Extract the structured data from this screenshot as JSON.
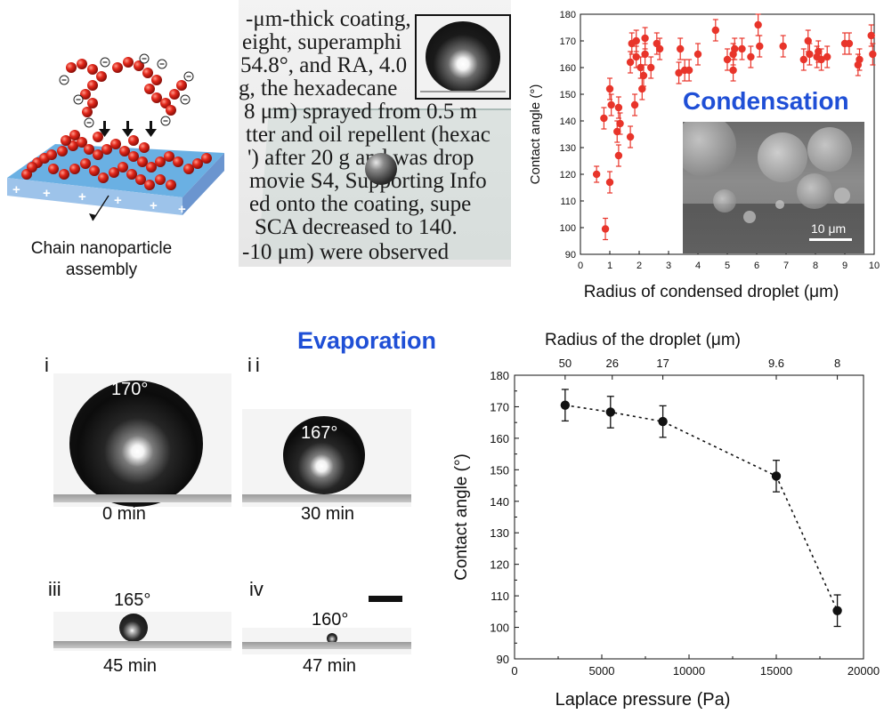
{
  "schematic": {
    "caption_line1": "Chain nanoparticle",
    "caption_line2": "assembly"
  },
  "photo_text": {
    "lines": [
      "-μm-thick coating,",
      "eight, superamphi",
      "54.8°, and RA, 4.0",
      "g, the hexadecane",
      "8 μm) sprayed from 0.5 m",
      "tter and oil repellent (hexac",
      "') after 20 g and was drop",
      "movie S4, Supporting Info",
      "ed onto the coating, supe",
      "SCA decreased to 140.",
      "-10 μm) were observed"
    ]
  },
  "condensation": {
    "title": "Condensation",
    "title_color": "#1f4fd6",
    "scalebar_label": "10 μm"
  },
  "evaporation": {
    "title": "Evaporation",
    "title_color": "#1f4fd6",
    "panels": [
      {
        "num": "i",
        "angle": "170°",
        "time": "0 min"
      },
      {
        "num": "ii",
        "angle": "167°",
        "time": "30 min"
      },
      {
        "num": "iii",
        "angle": "165°",
        "time": "45 min"
      },
      {
        "num": "iv",
        "angle": "160°",
        "time": "47 min"
      }
    ]
  },
  "chart_data": [
    {
      "type": "scatter",
      "xlabel": "Radius of condensed droplet (μm)",
      "ylabel": "Contact angle (°)",
      "xlim": [
        0,
        10
      ],
      "ylim": [
        90,
        180
      ],
      "xticks": [
        "0",
        "1",
        "2",
        "3",
        "4",
        "5",
        "6",
        "7",
        "8",
        "9",
        "10"
      ],
      "yticks": [
        "90",
        "100",
        "110",
        "120",
        "130",
        "140",
        "150",
        "160",
        "170",
        "180"
      ],
      "color": "#e8342a",
      "points": [
        {
          "x": 0.55,
          "y": 120,
          "e": 3
        },
        {
          "x": 0.8,
          "y": 141,
          "e": 4
        },
        {
          "x": 0.85,
          "y": 99.5,
          "e": 4
        },
        {
          "x": 1.0,
          "y": 117,
          "e": 4
        },
        {
          "x": 1.0,
          "y": 152,
          "e": 4
        },
        {
          "x": 1.05,
          "y": 146,
          "e": 4
        },
        {
          "x": 1.25,
          "y": 136,
          "e": 4
        },
        {
          "x": 1.3,
          "y": 145,
          "e": 4
        },
        {
          "x": 1.3,
          "y": 127,
          "e": 4
        },
        {
          "x": 1.35,
          "y": 139,
          "e": 4
        },
        {
          "x": 1.7,
          "y": 134,
          "e": 4
        },
        {
          "x": 1.7,
          "y": 162,
          "e": 4
        },
        {
          "x": 1.75,
          "y": 169,
          "e": 4
        },
        {
          "x": 1.85,
          "y": 146,
          "e": 4
        },
        {
          "x": 1.9,
          "y": 170,
          "e": 4
        },
        {
          "x": 1.9,
          "y": 164,
          "e": 4
        },
        {
          "x": 2.05,
          "y": 160,
          "e": 4
        },
        {
          "x": 2.1,
          "y": 152,
          "e": 4
        },
        {
          "x": 2.15,
          "y": 157,
          "e": 4
        },
        {
          "x": 2.2,
          "y": 171,
          "e": 4
        },
        {
          "x": 2.2,
          "y": 165,
          "e": 4
        },
        {
          "x": 2.4,
          "y": 160,
          "e": 4
        },
        {
          "x": 2.6,
          "y": 169,
          "e": 4
        },
        {
          "x": 2.7,
          "y": 167,
          "e": 4
        },
        {
          "x": 3.35,
          "y": 158,
          "e": 4
        },
        {
          "x": 3.4,
          "y": 167,
          "e": 4
        },
        {
          "x": 3.55,
          "y": 159,
          "e": 4
        },
        {
          "x": 3.7,
          "y": 159,
          "e": 4
        },
        {
          "x": 4.0,
          "y": 165,
          "e": 4
        },
        {
          "x": 4.6,
          "y": 174,
          "e": 4
        },
        {
          "x": 5.0,
          "y": 163,
          "e": 4
        },
        {
          "x": 5.2,
          "y": 159,
          "e": 4
        },
        {
          "x": 5.2,
          "y": 165,
          "e": 4
        },
        {
          "x": 5.25,
          "y": 167,
          "e": 4
        },
        {
          "x": 5.5,
          "y": 167,
          "e": 4
        },
        {
          "x": 5.8,
          "y": 164,
          "e": 4
        },
        {
          "x": 6.05,
          "y": 176,
          "e": 4
        },
        {
          "x": 6.1,
          "y": 168,
          "e": 4
        },
        {
          "x": 6.9,
          "y": 168,
          "e": 4
        },
        {
          "x": 7.6,
          "y": 163,
          "e": 4
        },
        {
          "x": 7.75,
          "y": 170,
          "e": 4
        },
        {
          "x": 7.8,
          "y": 165,
          "e": 4
        },
        {
          "x": 8.05,
          "y": 164,
          "e": 4
        },
        {
          "x": 8.1,
          "y": 166,
          "e": 4
        },
        {
          "x": 8.2,
          "y": 163,
          "e": 4
        },
        {
          "x": 8.4,
          "y": 164,
          "e": 4
        },
        {
          "x": 9.0,
          "y": 169,
          "e": 4
        },
        {
          "x": 9.15,
          "y": 169,
          "e": 4
        },
        {
          "x": 9.45,
          "y": 161,
          "e": 4
        },
        {
          "x": 9.5,
          "y": 163,
          "e": 4
        },
        {
          "x": 9.9,
          "y": 172,
          "e": 4
        },
        {
          "x": 9.95,
          "y": 165,
          "e": 4
        }
      ]
    },
    {
      "type": "line",
      "xlabel": "Laplace pressure (Pa)",
      "ylabel": "Contact angle (°)",
      "x2label": "Radius of the droplet (μm)",
      "xlim": [
        0,
        20000
      ],
      "ylim": [
        90,
        180
      ],
      "xticks": [
        "0",
        "5000",
        "10000",
        "15000",
        "20000"
      ],
      "yticks": [
        "90",
        "100",
        "110",
        "120",
        "130",
        "140",
        "150",
        "160",
        "170",
        "180"
      ],
      "top_ticks": [
        {
          "x": 2900,
          "label": "50"
        },
        {
          "x": 5600,
          "label": "26"
        },
        {
          "x": 8500,
          "label": "17"
        },
        {
          "x": 15000,
          "label": "9.6"
        },
        {
          "x": 18500,
          "label": "8"
        }
      ],
      "line_style": "dotted",
      "points": [
        {
          "x": 2900,
          "y": 170.5,
          "e": 5
        },
        {
          "x": 5500,
          "y": 168.3,
          "e": 5
        },
        {
          "x": 8500,
          "y": 165.3,
          "e": 5
        },
        {
          "x": 15000,
          "y": 148,
          "e": 5
        },
        {
          "x": 18500,
          "y": 105.3,
          "e": 5
        }
      ]
    }
  ]
}
